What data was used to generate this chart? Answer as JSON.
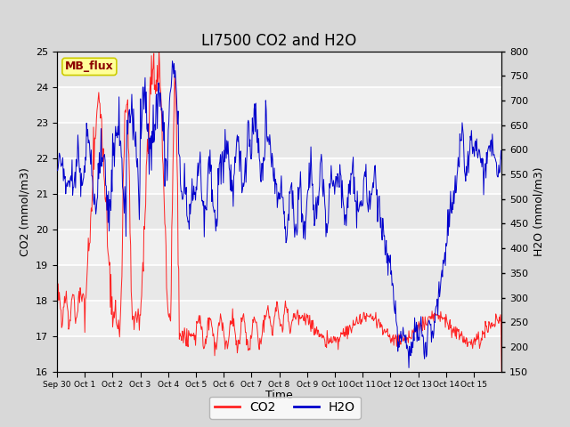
{
  "title": "LI7500 CO2 and H2O",
  "xlabel": "Time",
  "ylabel_left": "CO2 (mmol/m3)",
  "ylabel_right": "H2O (mmol/m3)",
  "ylim_left": [
    16.0,
    25.0
  ],
  "ylim_right": [
    150,
    800
  ],
  "yticks_left": [
    16.0,
    17.0,
    18.0,
    19.0,
    20.0,
    21.0,
    22.0,
    23.0,
    24.0,
    25.0
  ],
  "yticks_right": [
    150,
    200,
    250,
    300,
    350,
    400,
    450,
    500,
    550,
    600,
    650,
    700,
    750,
    800
  ],
  "xtick_labels": [
    "Sep 30",
    "Oct 1",
    "Oct 2",
    "Oct 3",
    "Oct 4",
    "Oct 5",
    "Oct 6",
    "Oct 7",
    "Oct 8",
    "Oct 9",
    "Oct 10",
    "Oct 11",
    "Oct 12",
    "Oct 13",
    "Oct 14",
    "Oct 15"
  ],
  "annotation_text": "MB_flux",
  "annotation_color": "#8B0000",
  "annotation_bg": "#FFFF99",
  "annotation_edge": "#CCCC00",
  "co2_color": "#FF2222",
  "h2o_color": "#0000CC",
  "background_color": "#D8D8D8",
  "plot_bg": "#F0F0F0",
  "stripe_color": "#E8E8E8",
  "grid_color": "white",
  "title_fontsize": 12,
  "axis_fontsize": 8,
  "label_fontsize": 9,
  "legend_fontsize": 10,
  "n_days": 16,
  "pts_per_day": 48
}
